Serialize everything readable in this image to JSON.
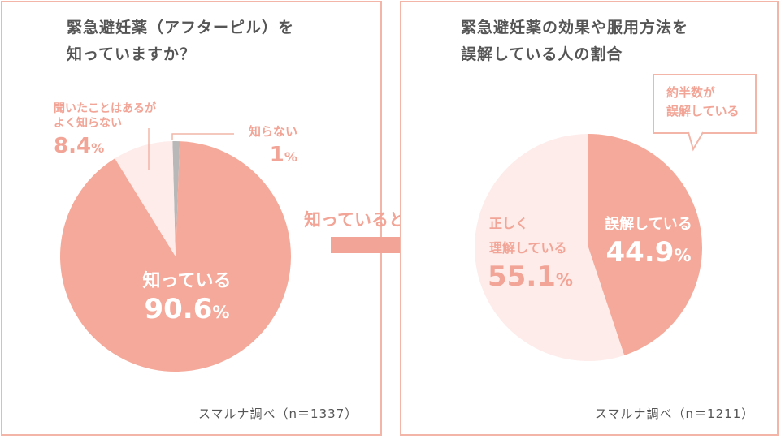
{
  "chart_data": [
    {
      "type": "pie",
      "title": "緊急避妊薬（アフターピル）を\n知っていますか？",
      "title_lines": [
        "緊急避妊薬（アフターピル）を",
        "知っていますか？"
      ],
      "slices": [
        {
          "label": "知っている",
          "value": 90.6,
          "value_text": "90.6",
          "color": "#f5a99a"
        },
        {
          "label": "聞いたことはあるが\nよく知らない",
          "label_lines": [
            "聞いたことはあるが",
            "よく知らない"
          ],
          "value": 8.4,
          "value_text": "8.4",
          "color": "#fdecea"
        },
        {
          "label": "知らない",
          "value": 1,
          "value_text": "1",
          "color": "#b8b8b8"
        }
      ],
      "unit": "%",
      "source": "スマルナ調べ（n＝1337）"
    },
    {
      "type": "pie",
      "title": "緊急避妊薬の効果や服用方法を\n誤解している人の割合",
      "title_lines": [
        "緊急避妊薬の効果や服用方法を",
        "誤解している人の割合"
      ],
      "slices": [
        {
          "label": "誤解している",
          "value": 44.9,
          "value_text": "44.9",
          "color": "#f5a99a"
        },
        {
          "label": "正しく\n理解している",
          "label_lines": [
            "正しく",
            "理解している"
          ],
          "value": 55.1,
          "value_text": "55.1",
          "color": "#fdecea"
        }
      ],
      "unit": "%",
      "callout_lines": [
        "約半数が",
        "誤解している"
      ],
      "source": "スマルナ調べ（n＝1211）"
    }
  ],
  "arrow_label": "知っていると回答",
  "colors": {
    "accent": "#f2a597",
    "border": "#f2b5a8",
    "light": "#fdecea",
    "title": "#555555"
  }
}
